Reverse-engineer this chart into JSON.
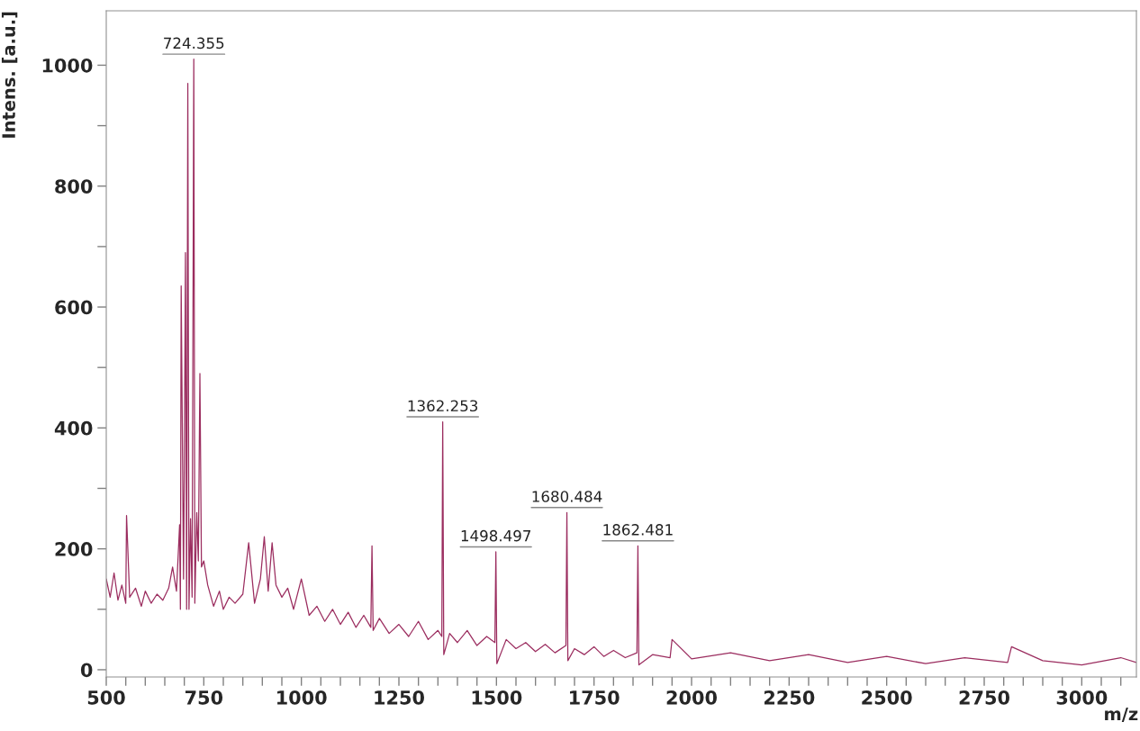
{
  "chart_data": {
    "type": "line",
    "xlabel": "m/z",
    "ylabel": "Intens. [a.u.]",
    "xlim": [
      500,
      3140
    ],
    "ylim": [
      -12,
      1090
    ],
    "xticks": [
      500,
      {
        "value": 550,
        "label": null
      },
      {
        "value": 600,
        "label": null
      },
      {
        "value": 650,
        "label": null
      },
      {
        "value": 700,
        "label": null
      },
      750,
      {
        "value": 800,
        "label": null
      },
      {
        "value": 850,
        "label": null
      },
      {
        "value": 900,
        "label": null
      },
      {
        "value": 950,
        "label": null
      },
      1000,
      {
        "value": 1050,
        "label": null
      },
      {
        "value": 1100,
        "label": null
      },
      {
        "value": 1150,
        "label": null
      },
      {
        "value": 1200,
        "label": null
      },
      1250,
      {
        "value": 1300,
        "label": null
      },
      {
        "value": 1350,
        "label": null
      },
      {
        "value": 1400,
        "label": null
      },
      {
        "value": 1450,
        "label": null
      },
      1500,
      {
        "value": 1550,
        "label": null
      },
      {
        "value": 1600,
        "label": null
      },
      {
        "value": 1650,
        "label": null
      },
      {
        "value": 1700,
        "label": null
      },
      1750,
      {
        "value": 1800,
        "label": null
      },
      {
        "value": 1850,
        "label": null
      },
      {
        "value": 1900,
        "label": null
      },
      {
        "value": 1950,
        "label": null
      },
      2000,
      {
        "value": 2050,
        "label": null
      },
      {
        "value": 2100,
        "label": null
      },
      {
        "value": 2150,
        "label": null
      },
      {
        "value": 2200,
        "label": null
      },
      2250,
      {
        "value": 2300,
        "label": null
      },
      {
        "value": 2350,
        "label": null
      },
      {
        "value": 2400,
        "label": null
      },
      {
        "value": 2450,
        "label": null
      },
      2500,
      {
        "value": 2550,
        "label": null
      },
      {
        "value": 2600,
        "label": null
      },
      {
        "value": 2650,
        "label": null
      },
      {
        "value": 2700,
        "label": null
      },
      2750,
      {
        "value": 2800,
        "label": null
      },
      {
        "value": 2850,
        "label": null
      },
      {
        "value": 2900,
        "label": null
      },
      {
        "value": 2950,
        "label": null
      },
      3000,
      {
        "value": 3050,
        "label": null
      },
      {
        "value": 3100,
        "label": null
      }
    ],
    "yticks": [
      0,
      {
        "value": 100,
        "label": null
      },
      200,
      {
        "value": 300,
        "label": null
      },
      400,
      {
        "value": 500,
        "label": null
      },
      600,
      {
        "value": 700,
        "label": null
      },
      800,
      {
        "value": 900,
        "label": null
      },
      1000
    ],
    "grid": false,
    "legend": false,
    "series": [
      {
        "color": "#9b2d5f",
        "x": [
          500,
          510,
          520,
          530,
          540,
          550,
          552,
          560,
          575,
          590,
          600,
          615,
          630,
          645,
          660,
          670,
          680,
          688,
          690,
          692,
          698,
          700,
          703,
          706,
          709,
          712,
          716,
          720,
          724.355,
          727,
          732,
          736,
          740,
          744,
          750,
          760,
          775,
          790,
          800,
          815,
          830,
          850,
          865,
          880,
          895,
          905,
          915,
          925,
          935,
          950,
          965,
          980,
          1000,
          1020,
          1040,
          1060,
          1080,
          1100,
          1120,
          1140,
          1160,
          1178,
          1181,
          1184,
          1200,
          1225,
          1250,
          1275,
          1300,
          1325,
          1350,
          1360,
          1362.253,
          1365,
          1380,
          1400,
          1425,
          1450,
          1475,
          1496,
          1498.497,
          1501,
          1525,
          1550,
          1575,
          1600,
          1625,
          1650,
          1678,
          1680.484,
          1683,
          1700,
          1725,
          1750,
          1775,
          1800,
          1830,
          1860,
          1862.481,
          1865,
          1900,
          1945,
          1950,
          2000,
          2100,
          2200,
          2300,
          2400,
          2500,
          2600,
          2700,
          2810,
          2820,
          2900,
          3000,
          3100,
          3140
        ],
        "values": [
          150,
          120,
          160,
          115,
          140,
          110,
          255,
          120,
          135,
          105,
          130,
          110,
          125,
          115,
          135,
          170,
          130,
          240,
          100,
          635,
          150,
          330,
          690,
          100,
          970,
          100,
          250,
          120,
          1010,
          110,
          260,
          180,
          490,
          170,
          180,
          140,
          105,
          130,
          100,
          120,
          110,
          125,
          210,
          110,
          150,
          220,
          130,
          210,
          140,
          120,
          135,
          100,
          150,
          90,
          105,
          80,
          100,
          75,
          95,
          70,
          90,
          70,
          205,
          65,
          85,
          60,
          75,
          55,
          80,
          50,
          65,
          55,
          410,
          25,
          60,
          45,
          65,
          40,
          55,
          45,
          195,
          10,
          50,
          35,
          45,
          30,
          42,
          28,
          40,
          260,
          15,
          35,
          25,
          38,
          22,
          32,
          20,
          28,
          205,
          8,
          25,
          20,
          50,
          18,
          28,
          15,
          25,
          12,
          22,
          10,
          20,
          12,
          38,
          15,
          8,
          20,
          12
        ]
      }
    ],
    "annotations": [
      {
        "text": "724.355",
        "x": 724.355,
        "y": 1010
      },
      {
        "text": "1362.253",
        "x": 1362.253,
        "y": 410
      },
      {
        "text": "1498.497",
        "x": 1498.497,
        "y": 195
      },
      {
        "text": "1680.484",
        "x": 1680.484,
        "y": 260
      },
      {
        "text": "1862.481",
        "x": 1862.481,
        "y": 205
      }
    ]
  }
}
